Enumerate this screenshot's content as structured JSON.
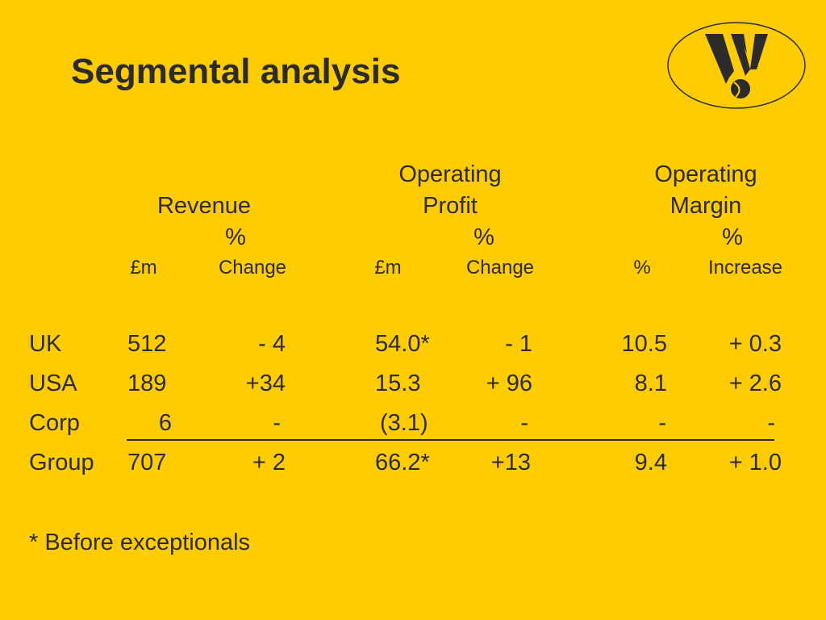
{
  "slide": {
    "title": "Segmental analysis",
    "footnote": "* Before exceptionals"
  },
  "header": {
    "revenue": {
      "line1": "",
      "line2": "Revenue",
      "pct": "%"
    },
    "op_profit": {
      "line1": "Operating",
      "line2": "Profit",
      "pct": "%"
    },
    "op_margin": {
      "line1": "Operating",
      "line2": "Margin",
      "pct": "%"
    }
  },
  "subheader": {
    "rev_m": "£m",
    "rev_change": "Change",
    "op_m": "£m",
    "op_change": "Change",
    "margin_pct": "%",
    "margin_increase": "Increase"
  },
  "rows": [
    {
      "segment": "UK",
      "revenue": "512",
      "rev_change": "- 4",
      "op_profit": "54.0*",
      "op_change": "- 1",
      "margin": "10.5",
      "margin_increase": "+ 0.3"
    },
    {
      "segment": "USA",
      "revenue": "189",
      "rev_change": "+34",
      "op_profit": "15.3",
      "op_change": "+ 96",
      "margin": "8.1",
      "margin_increase": "+ 2.6"
    },
    {
      "segment": "Corp",
      "revenue": "6",
      "rev_change": "-",
      "op_profit": "(3.1)",
      "op_change": "-",
      "margin": "-",
      "margin_increase": "-"
    },
    {
      "segment": "Group",
      "revenue": "707",
      "rev_change": "+ 2",
      "op_profit": "66.2*",
      "op_change": "+13",
      "margin": "9.4",
      "margin_increase": "+ 1.0"
    }
  ],
  "logo": {
    "icon": "company-w-logo-icon",
    "colors": {
      "ring": "#2b2b2b",
      "mark": "#2b2b2b",
      "background": "#FFCC00"
    }
  },
  "colors": {
    "background": "#FFCC00",
    "text": "#2b2b2b"
  }
}
